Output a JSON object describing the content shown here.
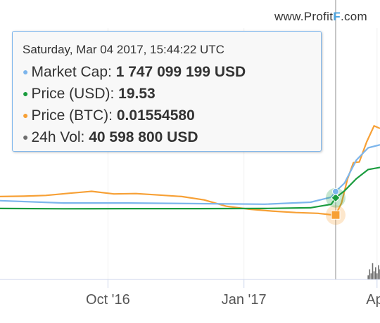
{
  "watermark": {
    "prefix": "www.Profit",
    "brand_letter": "F",
    "suffix": ".com"
  },
  "tooltip": {
    "date": "Saturday, Mar 04 2017, 15:44:22 UTC",
    "rows": [
      {
        "label": "Market Cap:",
        "value": "1 747 099 199 USD",
        "color": "#7cb5ec"
      },
      {
        "label": "Price (USD):",
        "value": "19.53",
        "color": "#1a9c3e"
      },
      {
        "label": "Price (BTC):",
        "value": "0.01554580",
        "color": "#f7a035"
      },
      {
        "label": "24h Vol:",
        "value": "40 598 800 USD",
        "color": "#6e6e6e"
      }
    ]
  },
  "chart_data": {
    "type": "line",
    "x_tick_labels": [
      "Oct '16",
      "Jan '17",
      "Apr"
    ],
    "x_range": [
      "2016-07-20",
      "2017-04-03"
    ],
    "crosshair_x": "2017-03-04",
    "series": [
      {
        "name": "Price (BTC)",
        "color": "#f7a035",
        "x": [
          "2016-07-20",
          "2016-08-05",
          "2016-08-20",
          "2016-09-05",
          "2016-09-20",
          "2016-10-05",
          "2016-10-20",
          "2016-11-05",
          "2016-11-20",
          "2016-12-05",
          "2016-12-20",
          "2017-01-05",
          "2017-01-20",
          "2017-02-05",
          "2017-02-20",
          "2017-03-01",
          "2017-03-04",
          "2017-03-08",
          "2017-03-12",
          "2017-03-16",
          "2017-03-20",
          "2017-03-25",
          "2017-03-30",
          "2017-04-03"
        ],
        "y": [
          0.0205,
          0.0206,
          0.0208,
          0.0214,
          0.0219,
          0.0212,
          0.0213,
          0.0209,
          0.0205,
          0.0196,
          0.0179,
          0.0171,
          0.0166,
          0.0162,
          0.016,
          0.0156,
          0.0155458,
          0.0188,
          0.0252,
          0.0296,
          0.0298,
          0.0352,
          0.0395,
          0.0388
        ]
      },
      {
        "name": "Market Cap",
        "color": "#7cb5ec",
        "x": [
          "2016-07-20",
          "2016-09-01",
          "2016-10-15",
          "2016-12-01",
          "2017-01-15",
          "2017-02-15",
          "2017-03-01",
          "2017-03-04",
          "2017-03-10",
          "2017-03-18",
          "2017-03-26",
          "2017-04-03"
        ],
        "y": [
          1.15,
          1.0,
          1.0,
          0.96,
          0.92,
          1.05,
          1.38,
          1.747099199,
          2.3,
          3.8,
          4.6,
          4.8
        ]
      },
      {
        "name": "Price (USD)",
        "color": "#1a9c3e",
        "x": [
          "2016-07-20",
          "2016-09-01",
          "2016-10-15",
          "2016-12-01",
          "2017-01-15",
          "2017-02-15",
          "2017-03-01",
          "2017-03-04",
          "2017-03-10",
          "2017-03-18",
          "2017-03-26",
          "2017-04-03"
        ],
        "y": [
          12.0,
          11.8,
          11.9,
          11.9,
          12.0,
          12.5,
          15.0,
          19.53,
          24.5,
          33.0,
          39.5,
          41.0
        ]
      },
      {
        "name": "24h Vol",
        "color": "#6e6e6e",
        "x": [
          "2017-03-26",
          "2017-03-27",
          "2017-03-28",
          "2017-03-29",
          "2017-03-30",
          "2017-03-31",
          "2017-04-01",
          "2017-04-02",
          "2017-04-03"
        ],
        "y": [
          2.0,
          5.0,
          3.0,
          8.0,
          4.0,
          6.0,
          3.0,
          7.0,
          5.0
        ]
      }
    ],
    "grid": true
  }
}
